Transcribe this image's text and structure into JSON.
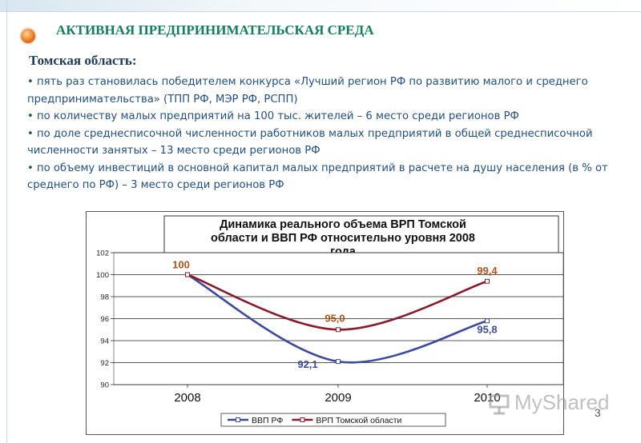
{
  "header": {
    "title": "АКТИВНАЯ ПРЕДПРИНИМАТЕЛЬСКАЯ СРЕДА"
  },
  "content": {
    "subtitle": "Томская область:",
    "bullets": [
      "• пять раз становилась победителем конкурса «Лучший регион РФ по развитию малого и среднего предпринимательства» (ТПП РФ, МЭР РФ, РСПП)",
      "• по количеству малых предприятий на 100 тыс. жителей – 6 место среди регионов РФ",
      "• по доле среднесписочной численности работников малых предприятий в общей среднесписочной численности занятых – 13 место среди регионов РФ",
      "• по объему инвестиций в основной капитал малых предприятий в расчете на душу населения (в % от среднего по РФ) – 3 место среди регионов РФ"
    ]
  },
  "chart_data": {
    "type": "line",
    "title_lines": [
      "Динамика реального объема ВРП Томской",
      "области и ВВП РФ относительно уровня 2008",
      "года"
    ],
    "categories": [
      "2008",
      "2009",
      "2010"
    ],
    "y_ticks": [
      "102",
      "100",
      "98",
      "96",
      "94",
      "92",
      "90"
    ],
    "ylim": [
      90,
      102
    ],
    "grid": true,
    "legend_position": "bottom",
    "series": [
      {
        "name": "ВВП РФ",
        "values": [
          100,
          92.1,
          95.8
        ],
        "labels": [
          "",
          "92,1",
          "95,8"
        ],
        "color": "#3a4aa0"
      },
      {
        "name": "ВРП Томской области",
        "values": [
          100,
          95.0,
          99.4
        ],
        "labels": [
          "100",
          "95,0",
          "99,4"
        ],
        "color": "#8b1a2b"
      }
    ]
  },
  "footer": {
    "slide_number": "3",
    "watermark": "MyShared"
  }
}
